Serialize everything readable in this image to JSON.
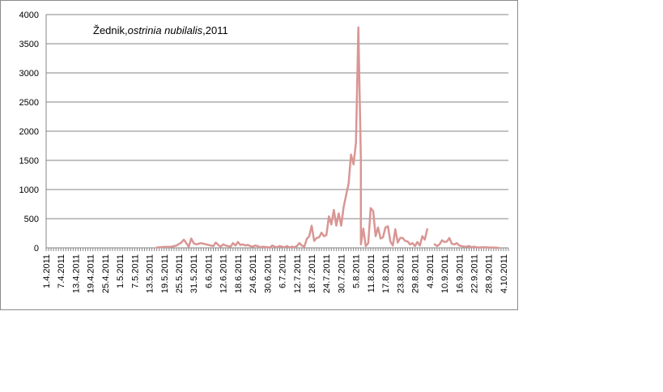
{
  "chart_data": {
    "type": "line",
    "title_parts": [
      {
        "text": "Žednik,",
        "italic": false
      },
      {
        "text": "ostrinia nubilalis",
        "italic": true
      },
      {
        "text": ",2011",
        "italic": false
      }
    ],
    "xlabel": "",
    "ylabel": "",
    "ylim": [
      0,
      4000
    ],
    "yticks": [
      "0",
      "500",
      "1000",
      "1500",
      "2000",
      "2500",
      "3000",
      "3500",
      "4000"
    ],
    "grid": "horizontal",
    "legend": "none",
    "x_start": "1.4.2011",
    "x_end": "6.10.2011",
    "x_tick_labels": [
      "1.4.2011",
      "7.4.2011",
      "13.4.2011",
      "19.4.2011",
      "25.4.2011",
      "1.5.2011",
      "7.5.2011",
      "13.5.2011",
      "19.5.2011",
      "25.5.2011",
      "31.5.2011",
      "6.6.2011",
      "12.6.2011",
      "18.6.2011",
      "24.6.2011",
      "30.6.2011",
      "6.7.2011",
      "12.7.2011",
      "18.7.2011",
      "24.7.2011",
      "30.7.2011",
      "5.8.2011",
      "11.8.2011",
      "17.8.2011",
      "23.8.2011",
      "29.8.2011",
      "4.9.2011",
      "10.9.2011",
      "16.9.2011",
      "22.9.2011",
      "28.9.2011",
      "4.10.2011"
    ],
    "line_color": "#d99694",
    "series": [
      {
        "segments": [
          [
            [
              "16.5.2011",
              5
            ],
            [
              "19.5.2011",
              15
            ],
            [
              "22.5.2011",
              20
            ],
            [
              "24.5.2011",
              40
            ],
            [
              "26.5.2011",
              90
            ],
            [
              "27.5.2011",
              140
            ],
            [
              "28.5.2011",
              80
            ],
            [
              "29.5.2011",
              20
            ],
            [
              "30.5.2011",
              160
            ],
            [
              "31.5.2011",
              80
            ],
            [
              "1.6.2011",
              60
            ],
            [
              "2.6.2011",
              70
            ],
            [
              "3.6.2011",
              80
            ],
            [
              "5.6.2011",
              60
            ],
            [
              "7.6.2011",
              40
            ],
            [
              "8.6.2011",
              30
            ],
            [
              "9.6.2011",
              90
            ],
            [
              "10.6.2011",
              50
            ],
            [
              "11.6.2011",
              20
            ],
            [
              "12.6.2011",
              60
            ],
            [
              "13.6.2011",
              40
            ],
            [
              "14.6.2011",
              30
            ],
            [
              "15.6.2011",
              20
            ],
            [
              "16.6.2011",
              80
            ],
            [
              "17.6.2011",
              40
            ],
            [
              "18.6.2011",
              100
            ],
            [
              "19.6.2011",
              50
            ],
            [
              "20.6.2011",
              60
            ],
            [
              "21.6.2011",
              40
            ],
            [
              "22.6.2011",
              50
            ],
            [
              "23.6.2011",
              30
            ],
            [
              "24.6.2011",
              20
            ],
            [
              "25.6.2011",
              40
            ],
            [
              "26.6.2011",
              30
            ],
            [
              "27.6.2011",
              10
            ],
            [
              "28.6.2011",
              20
            ],
            [
              "29.6.2011",
              15
            ],
            [
              "30.6.2011",
              10
            ],
            [
              "1.7.2011",
              5
            ],
            [
              "2.7.2011",
              40
            ],
            [
              "3.7.2011",
              20
            ],
            [
              "4.7.2011",
              10
            ],
            [
              "5.7.2011",
              30
            ],
            [
              "6.7.2011",
              20
            ],
            [
              "7.7.2011",
              10
            ],
            [
              "8.7.2011",
              30
            ],
            [
              "9.7.2011",
              5
            ],
            [
              "10.7.2011",
              20
            ],
            [
              "11.7.2011",
              10
            ],
            [
              "12.7.2011",
              30
            ],
            [
              "13.7.2011",
              80
            ],
            [
              "14.7.2011",
              40
            ],
            [
              "15.7.2011",
              20
            ],
            [
              "16.7.2011",
              150
            ],
            [
              "17.7.2011",
              200
            ],
            [
              "18.7.2011",
              380
            ],
            [
              "19.7.2011",
              120
            ],
            [
              "20.7.2011",
              170
            ],
            [
              "21.7.2011",
              180
            ],
            [
              "22.7.2011",
              260
            ],
            [
              "23.7.2011",
              200
            ],
            [
              "24.7.2011",
              220
            ],
            [
              "25.7.2011",
              540
            ],
            [
              "26.7.2011",
              400
            ],
            [
              "27.7.2011",
              650
            ],
            [
              "28.7.2011",
              380
            ],
            [
              "29.7.2011",
              590
            ],
            [
              "30.7.2011",
              380
            ],
            [
              "31.7.2011",
              700
            ],
            [
              "1.8.2011",
              900
            ],
            [
              "2.8.2011",
              1100
            ],
            [
              "3.8.2011",
              1600
            ],
            [
              "4.8.2011",
              1430
            ],
            [
              "5.8.2011",
              1800
            ],
            [
              "6.8.2011",
              3780
            ],
            [
              "7.8.2011",
              1500
            ],
            [
              "7.8.2011",
              60
            ],
            [
              "8.8.2011",
              330
            ],
            [
              "9.8.2011",
              30
            ],
            [
              "10.8.2011",
              80
            ],
            [
              "11.8.2011",
              680
            ],
            [
              "12.8.2011",
              630
            ],
            [
              "13.8.2011",
              200
            ],
            [
              "14.8.2011",
              350
            ],
            [
              "15.8.2011",
              160
            ],
            [
              "16.8.2011",
              180
            ],
            [
              "17.8.2011",
              350
            ],
            [
              "18.8.2011",
              370
            ],
            [
              "19.8.2011",
              110
            ],
            [
              "20.8.2011",
              40
            ],
            [
              "21.8.2011",
              320
            ],
            [
              "22.8.2011",
              90
            ],
            [
              "23.8.2011",
              170
            ],
            [
              "24.8.2011",
              170
            ],
            [
              "25.8.2011",
              120
            ],
            [
              "26.8.2011",
              110
            ],
            [
              "27.8.2011",
              60
            ],
            [
              "28.8.2011",
              80
            ],
            [
              "29.8.2011",
              30
            ],
            [
              "30.8.2011",
              100
            ],
            [
              "31.8.2011",
              40
            ],
            [
              "1.9.2011",
              200
            ],
            [
              "2.9.2011",
              140
            ],
            [
              "3.9.2011",
              320
            ]
          ],
          [
            [
              "6.9.2011",
              60
            ],
            [
              "7.9.2011",
              30
            ],
            [
              "8.9.2011",
              60
            ],
            [
              "9.9.2011",
              130
            ],
            [
              "10.9.2011",
              100
            ],
            [
              "11.9.2011",
              110
            ],
            [
              "12.9.2011",
              170
            ],
            [
              "13.9.2011",
              70
            ],
            [
              "14.9.2011",
              60
            ],
            [
              "15.9.2011",
              80
            ],
            [
              "16.9.2011",
              40
            ],
            [
              "17.9.2011",
              30
            ],
            [
              "18.9.2011",
              20
            ],
            [
              "19.9.2011",
              20
            ],
            [
              "20.9.2011",
              30
            ],
            [
              "21.9.2011",
              10
            ],
            [
              "22.9.2011",
              20
            ],
            [
              "23.9.2011",
              10
            ],
            [
              "24.9.2011",
              5
            ],
            [
              "26.9.2011",
              10
            ],
            [
              "28.9.2011",
              5
            ],
            [
              "30.9.2011",
              5
            ],
            [
              "2.10.2011",
              0
            ]
          ]
        ]
      }
    ]
  }
}
